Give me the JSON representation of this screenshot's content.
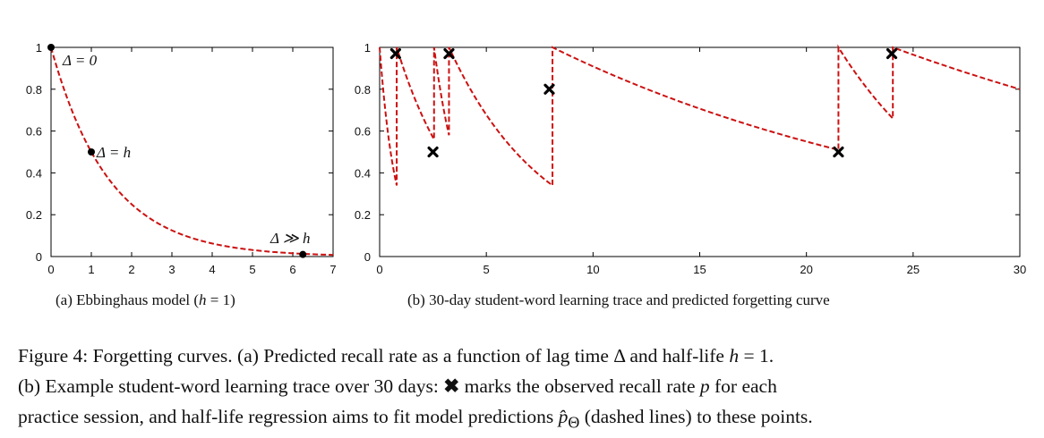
{
  "colors": {
    "curve": "#cc1111",
    "axes": "#000000"
  },
  "chart_data": [
    {
      "type": "line",
      "xlim": [
        0,
        7
      ],
      "ylim": [
        0,
        1
      ],
      "x_ticks": [
        "0",
        "1",
        "2",
        "3",
        "4",
        "5",
        "6",
        "7"
      ],
      "y_ticks": [
        "0",
        "0.2",
        "0.4",
        "0.6",
        "0.8",
        "1"
      ],
      "series": [
        {
          "formula": "p = 2^(-x/h)",
          "h": 1,
          "style": "dashed"
        }
      ],
      "points": [
        {
          "x": 0,
          "y": 1
        },
        {
          "x": 1,
          "y": 0.5
        },
        {
          "x": 6.25,
          "y": 0.01
        }
      ],
      "annotations": [
        {
          "text": "Δ = 0",
          "x": 0,
          "y": 1
        },
        {
          "text": "Δ = h",
          "x": 1,
          "y": 0.5
        },
        {
          "text": "Δ ≫ h",
          "x": 6.25,
          "y": 0.01
        }
      ]
    },
    {
      "type": "line",
      "xlim": [
        0,
        30
      ],
      "ylim": [
        0,
        1
      ],
      "x_ticks": [
        "0",
        "5",
        "10",
        "15",
        "20",
        "25",
        "30"
      ],
      "y_ticks": [
        "0",
        "0.2",
        "0.4",
        "0.6",
        "0.8",
        "1"
      ],
      "segments": [
        {
          "x_start": 0,
          "x_end": 0.8,
          "y_end": 0.34
        },
        {
          "x_start": 0.8,
          "x_end": 2.55,
          "y_end": 0.56
        },
        {
          "x_start": 2.55,
          "x_end": 3.25,
          "y_end": 0.58
        },
        {
          "x_start": 3.25,
          "x_end": 8.1,
          "y_end": 0.34
        },
        {
          "x_start": 8.1,
          "x_end": 21.5,
          "y_end": 0.51
        },
        {
          "x_start": 21.5,
          "x_end": 24.05,
          "y_end": 0.66
        },
        {
          "x_start": 24.05,
          "x_end": 30,
          "y_end": 0.8
        }
      ],
      "observed": [
        {
          "x": 0.75,
          "y": 0.97
        },
        {
          "x": 2.5,
          "y": 0.5
        },
        {
          "x": 3.25,
          "y": 0.97
        },
        {
          "x": 7.95,
          "y": 0.8
        },
        {
          "x": 21.5,
          "y": 0.5
        },
        {
          "x": 24.0,
          "y": 0.97
        }
      ]
    }
  ],
  "subcaptions": {
    "a_pre": "(a)  Ebbinghaus model (",
    "a_var": "h",
    "a_post": " = 1)",
    "b": "(b)  30-day student-word learning trace and predicted forgetting curve"
  },
  "caption": {
    "l1_pre": "Figure 4: Forgetting curves.  (a) Predicted recall rate as a function of lag time ",
    "l1_delta": "Δ",
    "l1_mid": " and half-life ",
    "l1_h": "h",
    "l1_end": " = 1.",
    "l2_pre": "(b) Example student-word learning trace over 30 days: ",
    "l2_mark": "✖",
    "l2_mid": " marks the observed recall rate ",
    "l2_p": "p",
    "l2_end": " for each",
    "l3_pre": "practice session, and half-life regression aims to fit model predictions ",
    "l3_phat": "p̂",
    "l3_sub": "Θ",
    "l3_end": " (dashed lines) to these points."
  }
}
